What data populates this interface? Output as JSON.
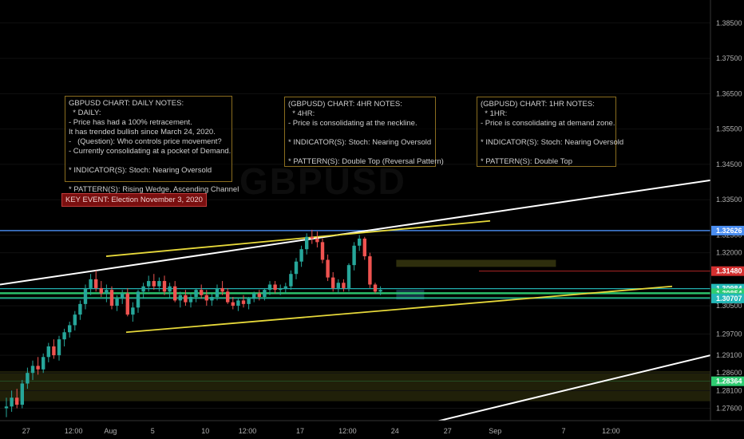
{
  "watermark": "GBPUSD",
  "notes": {
    "daily": "GBPUSD CHART: DAILY NOTES:\n  * DAILY:\n- Price has had a 100% retracement.\nIt has trended bullish since March 24, 2020.\n-   (Question): Who controls price movement?\n- Currently consolidating at a pocket of Demand.\n\n* INDICATOR(S): Stoch: Nearing Oversold\n\n* PATTERN(S): Rising Wedge, Ascending Channel",
    "h4": "(GBPUSD) CHART: 4HR NOTES:\n  * 4HR:\n- Price is consolidating at the neckline.\n\n* INDICATOR(S): Stoch: Nearing Oversold\n\n* PATTERN(S): Double Top (Reversal Pattern)",
    "h1": "(GBPUSD) CHART: 1HR NOTES:\n  * 1HR:\n- Price is consolidating at demand zone.\n\n* INDICATOR(S): Stoch: Nearing Oversold\n\n* PATTERN(S): Double Top"
  },
  "key_event": "KEY EVENT: Election November 3, 2020",
  "colors": {
    "up": "#26a69a",
    "down": "#ef5350",
    "yellow_line": "#e6d83a",
    "white_line": "#ffffff",
    "blue_level": "#4a8df0",
    "teal_level": "#24b8b8",
    "green_level": "#2ecc71",
    "red_level": "#d32f2f",
    "zone": "#3a3a10"
  },
  "chart_data": {
    "type": "candlestick",
    "symbol": "GBPUSD",
    "ylim": [
      1.2725,
      1.3915
    ],
    "y_ticks": [
      "1.38500",
      "1.37500",
      "1.36500",
      "1.35500",
      "1.34500",
      "1.33500",
      "1.32500",
      "1.32000",
      "1.30500",
      "1.29700",
      "1.29100",
      "1.28600",
      "1.28100",
      "1.27600"
    ],
    "price_labels": [
      {
        "text": "1.32626",
        "value": 1.32626,
        "color": "#4a8df0"
      },
      {
        "text": "1.31480",
        "value": 1.3148,
        "color": "#d32f2f"
      },
      {
        "text": "1.30984",
        "value": 1.30984,
        "color": "#24b8b8"
      },
      {
        "text": "1.30854",
        "value": 1.30854,
        "color": "#2ecc71"
      },
      {
        "text": "1.30731",
        "value": 1.30731,
        "color": "#2ecc71"
      },
      {
        "text": "1.30707",
        "value": 1.30707,
        "color": "#24b8b8"
      },
      {
        "text": "1.28364",
        "value": 1.28364,
        "color": "#2ecc71"
      }
    ],
    "x_ticks": [
      "27",
      "12:00",
      "Aug",
      "5",
      "10",
      "12:00",
      "17",
      "12:00",
      "24",
      "27",
      "Sep",
      "7",
      "12:00"
    ],
    "x_tick_index": [
      3,
      12,
      19,
      27,
      37,
      45,
      55,
      64,
      73,
      83,
      92,
      105,
      114
    ],
    "candles": [
      [
        1.276,
        1.279,
        1.2735,
        1.2765
      ],
      [
        1.2765,
        1.281,
        1.275,
        1.279
      ],
      [
        1.279,
        1.2815,
        1.276,
        1.277
      ],
      [
        1.277,
        1.284,
        1.276,
        1.283
      ],
      [
        1.283,
        1.2875,
        1.2815,
        1.286
      ],
      [
        1.286,
        1.2895,
        1.284,
        1.288
      ],
      [
        1.288,
        1.2905,
        1.2855,
        1.287
      ],
      [
        1.287,
        1.2915,
        1.286,
        1.2905
      ],
      [
        1.2905,
        1.2945,
        1.289,
        1.2935
      ],
      [
        1.2935,
        1.2955,
        1.29,
        1.291
      ],
      [
        1.291,
        1.2965,
        1.2895,
        1.2955
      ],
      [
        1.2955,
        1.2985,
        1.2935,
        1.2975
      ],
      [
        1.2975,
        1.3005,
        1.296,
        1.2995
      ],
      [
        1.2995,
        1.3035,
        1.298,
        1.3025
      ],
      [
        1.3025,
        1.3065,
        1.301,
        1.3055
      ],
      [
        1.3055,
        1.311,
        1.304,
        1.31
      ],
      [
        1.31,
        1.314,
        1.308,
        1.3125
      ],
      [
        1.3125,
        1.315,
        1.309,
        1.31
      ],
      [
        1.31,
        1.312,
        1.3075,
        1.3085
      ],
      [
        1.3085,
        1.311,
        1.306,
        1.3095
      ],
      [
        1.3095,
        1.3105,
        1.304,
        1.305
      ],
      [
        1.305,
        1.308,
        1.3035,
        1.307
      ],
      [
        1.307,
        1.3095,
        1.3055,
        1.3085
      ],
      [
        1.3085,
        1.31,
        1.302,
        1.3025
      ],
      [
        1.3025,
        1.306,
        1.3005,
        1.3045
      ],
      [
        1.3045,
        1.3095,
        1.303,
        1.309
      ],
      [
        1.309,
        1.3115,
        1.307,
        1.3105
      ],
      [
        1.3105,
        1.3135,
        1.309,
        1.312
      ],
      [
        1.312,
        1.314,
        1.3095,
        1.3105
      ],
      [
        1.3105,
        1.313,
        1.309,
        1.312
      ],
      [
        1.312,
        1.3135,
        1.308,
        1.309
      ],
      [
        1.309,
        1.3115,
        1.307,
        1.3105
      ],
      [
        1.3105,
        1.312,
        1.306,
        1.3065
      ],
      [
        1.3065,
        1.309,
        1.3045,
        1.308
      ],
      [
        1.308,
        1.3095,
        1.305,
        1.306
      ],
      [
        1.306,
        1.3085,
        1.3045,
        1.3075
      ],
      [
        1.3075,
        1.31,
        1.306,
        1.3095
      ],
      [
        1.3095,
        1.311,
        1.307,
        1.308
      ],
      [
        1.308,
        1.3095,
        1.305,
        1.3065
      ],
      [
        1.3065,
        1.3085,
        1.305,
        1.3075
      ],
      [
        1.3075,
        1.311,
        1.3065,
        1.31
      ],
      [
        1.31,
        1.312,
        1.308,
        1.309
      ],
      [
        1.309,
        1.31,
        1.3055,
        1.306
      ],
      [
        1.306,
        1.3075,
        1.304,
        1.305
      ],
      [
        1.305,
        1.307,
        1.3035,
        1.3065
      ],
      [
        1.3065,
        1.308,
        1.3045,
        1.3055
      ],
      [
        1.3055,
        1.3075,
        1.304,
        1.307
      ],
      [
        1.307,
        1.309,
        1.306,
        1.3085
      ],
      [
        1.3085,
        1.3095,
        1.3065,
        1.3075
      ],
      [
        1.3075,
        1.31,
        1.3065,
        1.3095
      ],
      [
        1.3095,
        1.312,
        1.308,
        1.311
      ],
      [
        1.311,
        1.312,
        1.3085,
        1.3095
      ],
      [
        1.3095,
        1.311,
        1.308,
        1.31
      ],
      [
        1.31,
        1.3115,
        1.3085,
        1.3105
      ],
      [
        1.3105,
        1.315,
        1.3095,
        1.314
      ],
      [
        1.314,
        1.3185,
        1.3125,
        1.3175
      ],
      [
        1.3175,
        1.322,
        1.316,
        1.321
      ],
      [
        1.321,
        1.3255,
        1.3195,
        1.3245
      ],
      [
        1.3245,
        1.3265,
        1.3225,
        1.324
      ],
      [
        1.324,
        1.326,
        1.3215,
        1.323
      ],
      [
        1.323,
        1.324,
        1.317,
        1.318
      ],
      [
        1.318,
        1.3195,
        1.312,
        1.313
      ],
      [
        1.313,
        1.3145,
        1.309,
        1.31
      ],
      [
        1.31,
        1.3125,
        1.3085,
        1.3115
      ],
      [
        1.3115,
        1.3125,
        1.309,
        1.31
      ],
      [
        1.31,
        1.317,
        1.309,
        1.3165
      ],
      [
        1.3165,
        1.323,
        1.315,
        1.322
      ],
      [
        1.322,
        1.325,
        1.3205,
        1.324
      ],
      [
        1.324,
        1.3245,
        1.318,
        1.319
      ],
      [
        1.319,
        1.32,
        1.31,
        1.311
      ],
      [
        1.311,
        1.3115,
        1.3085,
        1.309
      ],
      [
        1.309,
        1.3105,
        1.308,
        1.3095
      ]
    ]
  }
}
